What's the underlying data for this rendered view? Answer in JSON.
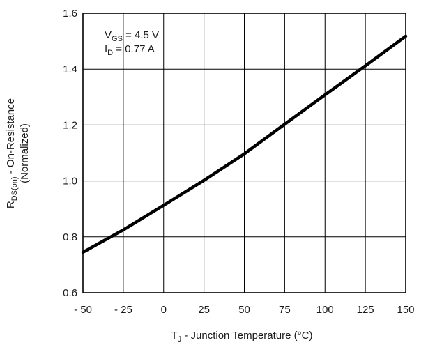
{
  "chart_data": {
    "type": "line",
    "x": [
      -50,
      -25,
      0,
      25,
      50,
      75,
      100,
      125,
      150
    ],
    "series": [
      {
        "values": [
          0.745,
          0.825,
          0.913,
          1.002,
          1.097,
          1.203,
          1.308,
          1.412,
          1.518
        ]
      }
    ],
    "xlim": [
      -50,
      150
    ],
    "ylim": [
      0.6,
      1.6
    ],
    "xticks": [
      "- 50",
      "- 25",
      "0",
      "25",
      "50",
      "75",
      "100",
      "125",
      "150"
    ],
    "yticks": [
      "0.6",
      "0.8",
      "1.0",
      "1.2",
      "1.4",
      "1.6"
    ],
    "grid": true,
    "line_color": "#000000",
    "xlabel": {
      "main": "T",
      "sub": "J",
      "rest": " - Junction Temperature (°C)"
    },
    "ylabel": {
      "line1_main": "R",
      "line1_sub": "DS(on)",
      "line1_rest": " - On-Resistance",
      "line2": "(Normalized)"
    },
    "annotations": [
      {
        "main": "V",
        "sub": "GS",
        "rest": " = 4.5 V"
      },
      {
        "main": "I",
        "sub": "D",
        "rest": " = 0.77 A"
      }
    ]
  }
}
